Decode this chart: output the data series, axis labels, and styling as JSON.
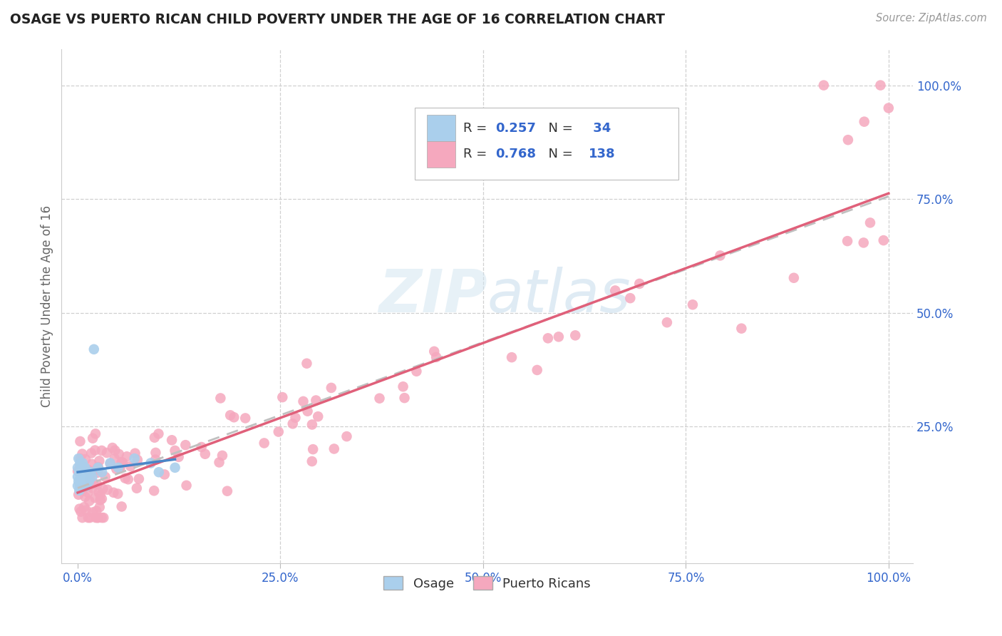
{
  "title": "OSAGE VS PUERTO RICAN CHILD POVERTY UNDER THE AGE OF 16 CORRELATION CHART",
  "source": "Source: ZipAtlas.com",
  "ylabel": "Child Poverty Under the Age of 16",
  "r1": 0.257,
  "n1": 34,
  "r2": 0.768,
  "n2": 138,
  "osage_color": "#aacfec",
  "pr_color": "#f5a8be",
  "osage_line_color": "#4a86c8",
  "pr_line_color": "#e0607a",
  "dashed_line_color": "#cccccc",
  "background_color": "#ffffff",
  "title_color": "#222222",
  "axis_label_color": "#666666",
  "tick_label_color": "#3366cc",
  "watermark_color": "#d0e4f0",
  "legend_label1": "Osage",
  "legend_label2": "Puerto Ricans",
  "xlim": [
    0.0,
    1.0
  ],
  "ylim": [
    0.0,
    1.0
  ],
  "xticks": [
    0.0,
    0.25,
    0.5,
    0.75,
    1.0
  ],
  "yticks": [
    0.25,
    0.5,
    0.75,
    1.0
  ],
  "osage_seed": 42,
  "pr_seed": 7
}
